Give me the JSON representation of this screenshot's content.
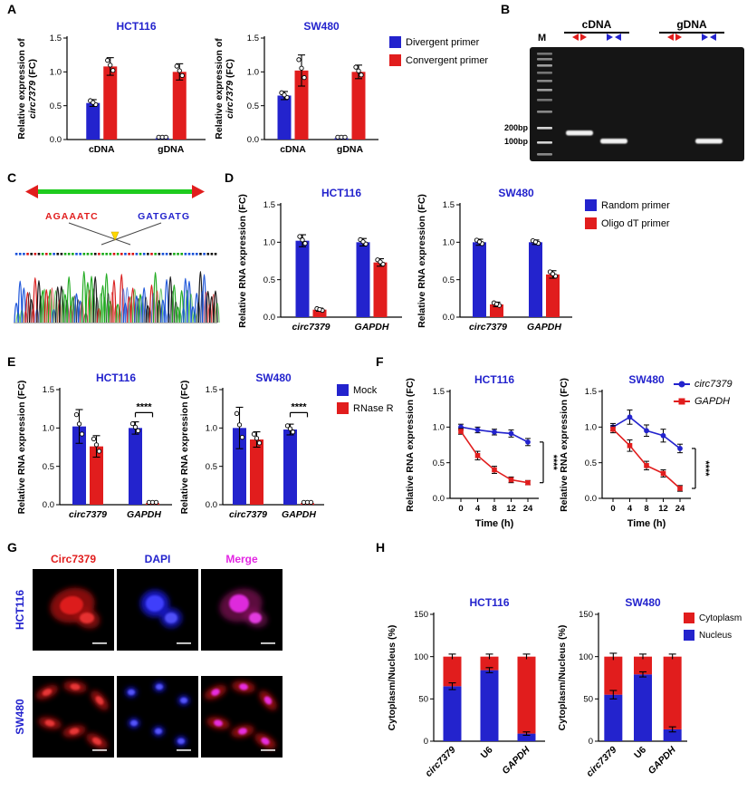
{
  "colors": {
    "blue": "#2323cd",
    "red": "#e11d1d",
    "magenta": "#e326e3",
    "green": "#1ecb1e",
    "yellow": "#ffd800",
    "black": "#000000"
  },
  "panels": {
    "A": {
      "label": "A",
      "legend": [
        {
          "label": "Divergent primer",
          "color": "blue"
        },
        {
          "label": "Convergent primer",
          "color": "red"
        }
      ]
    },
    "B": {
      "label": "B",
      "marker_lane": "M",
      "groups": [
        "cDNA",
        "gDNA"
      ],
      "size_labels": [
        "200bp",
        "100bp"
      ]
    },
    "C": {
      "label": "C",
      "left_seq": "AGAAATC",
      "right_seq": "GATGATG"
    },
    "D": {
      "label": "D",
      "legend": [
        {
          "label": "Random primer",
          "color": "blue"
        },
        {
          "label": "Oligo dT primer",
          "color": "red"
        }
      ]
    },
    "E": {
      "label": "E",
      "legend": [
        {
          "label": "Mock",
          "color": "blue"
        },
        {
          "label": "RNase R",
          "color": "red"
        }
      ]
    },
    "F": {
      "label": "F",
      "legend": [
        {
          "label": "circ7379",
          "color": "blue",
          "marker": "circle"
        },
        {
          "label": "GAPDH",
          "color": "red",
          "marker": "square"
        }
      ]
    },
    "G": {
      "label": "G",
      "col_headers": [
        "Circ7379",
        "DAPI",
        "Merge"
      ],
      "row_labels": [
        "HCT116",
        "SW480"
      ]
    },
    "H": {
      "label": "H",
      "legend": [
        {
          "label": "Cytoplasm",
          "color": "red"
        },
        {
          "label": "Nucleus",
          "color": "blue"
        }
      ]
    }
  },
  "chart_data": [
    {
      "panel": "A",
      "type": "bar",
      "title": "HCT116",
      "ylabel_lines": [
        "Relative expression of",
        "circ7379 (FC)"
      ],
      "ylim": [
        0,
        1.5
      ],
      "ytick_vals": [
        0,
        0.5,
        1,
        1.5
      ],
      "yticks": [
        "0.0",
        "0.5",
        "1.0",
        "1.5"
      ],
      "categories": [
        "cDNA",
        "gDNA"
      ],
      "dots": true,
      "series": [
        {
          "name": "Divergent primer",
          "color": "blue",
          "values": [
            0.54,
            0.02
          ],
          "errors": [
            0.05,
            0.01
          ]
        },
        {
          "name": "Convergent primer",
          "color": "red",
          "values": [
            1.08,
            1.0
          ],
          "errors": [
            0.13,
            0.12
          ]
        }
      ]
    },
    {
      "panel": "A",
      "type": "bar",
      "title": "SW480",
      "ylabel_lines": [
        "Relative expression of",
        "circ7379 (FC)"
      ],
      "ylim": [
        0,
        1.5
      ],
      "ytick_vals": [
        0,
        0.5,
        1,
        1.5
      ],
      "yticks": [
        "0.0",
        "0.5",
        "1.0",
        "1.5"
      ],
      "categories": [
        "cDNA",
        "gDNA"
      ],
      "dots": true,
      "series": [
        {
          "name": "Divergent primer",
          "color": "blue",
          "values": [
            0.65,
            0.02
          ],
          "errors": [
            0.06,
            0.01
          ]
        },
        {
          "name": "Convergent primer",
          "color": "red",
          "values": [
            1.02,
            1.0
          ],
          "errors": [
            0.23,
            0.1
          ]
        }
      ]
    },
    {
      "panel": "D",
      "type": "bar",
      "title": "HCT116",
      "ylabel_lines": [
        "Relative RNA expression (FC)"
      ],
      "ylim": [
        0,
        1.5
      ],
      "ytick_vals": [
        0,
        0.5,
        1,
        1.5
      ],
      "yticks": [
        "0.0",
        "0.5",
        "1.0",
        "1.5"
      ],
      "categories": [
        "circ7379",
        "GAPDH"
      ],
      "dots": true,
      "series": [
        {
          "name": "Random primer",
          "color": "blue",
          "values": [
            1.02,
            1.0
          ],
          "errors": [
            0.08,
            0.05
          ]
        },
        {
          "name": "Oligo dT primer",
          "color": "red",
          "values": [
            0.1,
            0.73
          ],
          "errors": [
            0.02,
            0.05
          ]
        }
      ]
    },
    {
      "panel": "D",
      "type": "bar",
      "title": "SW480",
      "ylabel_lines": [
        "Relative RNA expression (FC)"
      ],
      "ylim": [
        0,
        1.5
      ],
      "ytick_vals": [
        0,
        0.5,
        1,
        1.5
      ],
      "yticks": [
        "0.0",
        "0.5",
        "1.0",
        "1.5"
      ],
      "categories": [
        "circ7379",
        "GAPDH"
      ],
      "dots": true,
      "series": [
        {
          "name": "Random primer",
          "color": "blue",
          "values": [
            1.0,
            1.0
          ],
          "errors": [
            0.04,
            0.03
          ]
        },
        {
          "name": "Oligo dT primer",
          "color": "red",
          "values": [
            0.17,
            0.57
          ],
          "errors": [
            0.03,
            0.05
          ]
        }
      ]
    },
    {
      "panel": "E",
      "type": "bar",
      "title": "HCT116",
      "ylabel_lines": [
        "Relative RNA expression (FC)"
      ],
      "ylim": [
        0,
        1.5
      ],
      "ytick_vals": [
        0,
        0.5,
        1,
        1.5
      ],
      "yticks": [
        "0.0",
        "0.5",
        "1.0",
        "1.5"
      ],
      "categories": [
        "circ7379",
        "GAPDH"
      ],
      "dots": true,
      "sig": {
        "category": 1,
        "y": 1.2,
        "label": "****"
      },
      "series": [
        {
          "name": "Mock",
          "color": "blue",
          "values": [
            1.02,
            1.0
          ],
          "errors": [
            0.22,
            0.08
          ]
        },
        {
          "name": "RNase R",
          "color": "red",
          "values": [
            0.76,
            0.02
          ],
          "errors": [
            0.14,
            0.01
          ]
        }
      ]
    },
    {
      "panel": "E",
      "type": "bar",
      "title": "SW480",
      "ylabel_lines": [
        "Relative RNA expression (FC)"
      ],
      "ylim": [
        0,
        1.5
      ],
      "ytick_vals": [
        0,
        0.5,
        1,
        1.5
      ],
      "yticks": [
        "0.0",
        "0.5",
        "1.0",
        "1.5"
      ],
      "categories": [
        "circ7379",
        "GAPDH"
      ],
      "dots": true,
      "sig": {
        "category": 1,
        "y": 1.2,
        "label": "****"
      },
      "series": [
        {
          "name": "Mock",
          "color": "blue",
          "values": [
            1.0,
            0.98
          ],
          "errors": [
            0.27,
            0.07
          ]
        },
        {
          "name": "RNase R",
          "color": "red",
          "values": [
            0.85,
            0.02
          ],
          "errors": [
            0.1,
            0.01
          ]
        }
      ]
    },
    {
      "panel": "F",
      "type": "line",
      "title": "HCT116",
      "ylabel_lines": [
        "Relative RNA expression (FC)"
      ],
      "xlabel": "Time (h)",
      "xticklabels": [
        "0",
        "4",
        "8",
        "12",
        "24"
      ],
      "ylim": [
        0,
        1.5
      ],
      "ytick_vals": [
        0,
        0.5,
        1,
        1.5
      ],
      "yticks": [
        "0.0",
        "0.5",
        "1.0",
        "1.5"
      ],
      "sig": {
        "label": "****"
      },
      "series": [
        {
          "name": "circ7379",
          "color": "blue",
          "marker": "circle",
          "values": [
            1.0,
            0.96,
            0.93,
            0.91,
            0.79
          ],
          "errors": [
            0.04,
            0.04,
            0.04,
            0.05,
            0.05
          ]
        },
        {
          "name": "GAPDH",
          "color": "red",
          "marker": "square",
          "values": [
            0.94,
            0.6,
            0.4,
            0.26,
            0.22
          ],
          "errors": [
            0.04,
            0.06,
            0.05,
            0.04,
            0.03
          ]
        }
      ]
    },
    {
      "panel": "F",
      "type": "line",
      "title": "SW480",
      "ylabel_lines": [
        "Relative RNA expression (FC)"
      ],
      "xlabel": "Time (h)",
      "xticklabels": [
        "0",
        "4",
        "8",
        "12",
        "24"
      ],
      "ylim": [
        0,
        1.5
      ],
      "ytick_vals": [
        0,
        0.5,
        1,
        1.5
      ],
      "yticks": [
        "0.0",
        "0.5",
        "1.0",
        "1.5"
      ],
      "sig": {
        "label": "****"
      },
      "series": [
        {
          "name": "circ7379",
          "color": "blue",
          "marker": "circle",
          "values": [
            1.0,
            1.14,
            0.95,
            0.88,
            0.7
          ],
          "errors": [
            0.05,
            0.1,
            0.08,
            0.09,
            0.06
          ]
        },
        {
          "name": "GAPDH",
          "color": "red",
          "marker": "square",
          "values": [
            0.97,
            0.74,
            0.46,
            0.35,
            0.14
          ],
          "errors": [
            0.05,
            0.08,
            0.06,
            0.05,
            0.04
          ]
        }
      ]
    },
    {
      "panel": "H",
      "type": "stacked",
      "title": "HCT116",
      "ylabel_lines": [
        "Cytoplasm/Nucleus (%)"
      ],
      "ylim": [
        0,
        150
      ],
      "ytick_vals": [
        0,
        50,
        100,
        150
      ],
      "yticks": [
        "0",
        "50",
        "100",
        "150"
      ],
      "categories": [
        "circ7379",
        "U6",
        "GAPDH"
      ],
      "series": [
        {
          "name": "Nucleus",
          "color": "blue",
          "values": [
            65,
            84,
            9
          ],
          "errors": [
            4,
            3,
            2
          ]
        },
        {
          "name": "Cytoplasm",
          "color": "red",
          "values": [
            35,
            16,
            91
          ],
          "errors": [
            3,
            3,
            3
          ]
        }
      ]
    },
    {
      "panel": "H",
      "type": "stacked",
      "title": "SW480",
      "ylabel_lines": [
        "Cytoplasm/Nucleus (%)"
      ],
      "ylim": [
        0,
        150
      ],
      "ytick_vals": [
        0,
        50,
        100,
        150
      ],
      "yticks": [
        "0",
        "50",
        "100",
        "150"
      ],
      "categories": [
        "circ7379",
        "U6",
        "GAPDH"
      ],
      "series": [
        {
          "name": "Nucleus",
          "color": "blue",
          "values": [
            55,
            79,
            14
          ],
          "errors": [
            5,
            3,
            3
          ]
        },
        {
          "name": "Cytoplasm",
          "color": "red",
          "values": [
            45,
            21,
            86
          ],
          "errors": [
            4,
            3,
            3
          ]
        }
      ]
    }
  ]
}
